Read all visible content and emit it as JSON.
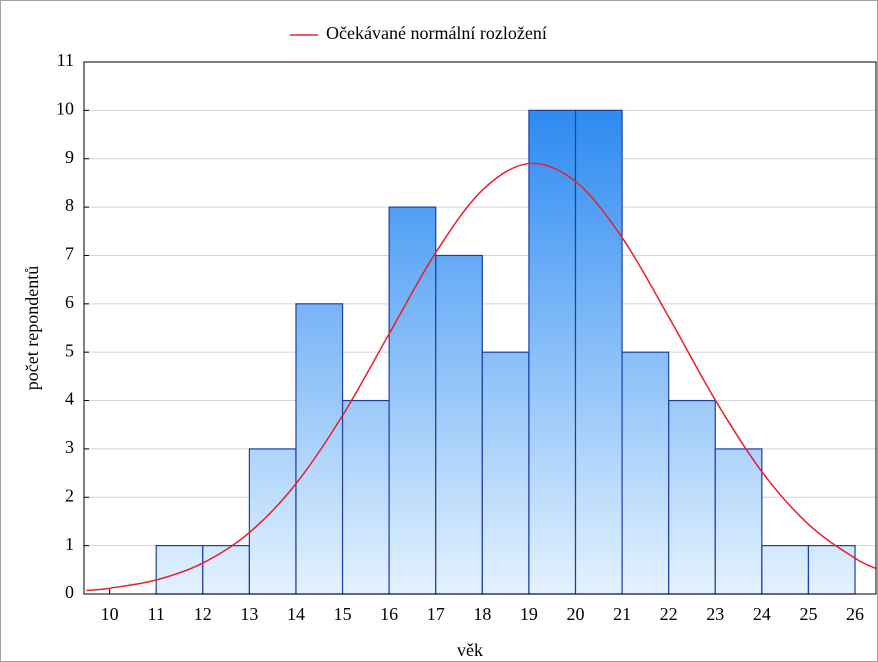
{
  "chart_data": {
    "type": "histogram",
    "xlabel": "věk",
    "ylabel": "počet repondentů",
    "bins": [
      11,
      12,
      13,
      14,
      15,
      16,
      17,
      18,
      19,
      20,
      21,
      22,
      23,
      24,
      25,
      26
    ],
    "counts": [
      1,
      1,
      3,
      6,
      4,
      8,
      7,
      5,
      10,
      10,
      5,
      4,
      3,
      1,
      1
    ],
    "bar_colors": [
      "#1a80f0",
      "#e4f2ff"
    ],
    "edge_color": "#1e3fa6",
    "curve": {
      "name": "Očekávané normální rozložení",
      "color": "#e8202a",
      "x": [
        9.5,
        10,
        11,
        12,
        13,
        14,
        15,
        16,
        17,
        18,
        19,
        20,
        21,
        22,
        23,
        24,
        25,
        26,
        26.5
      ],
      "values": [
        0.07,
        0.12,
        0.29,
        0.64,
        1.27,
        2.28,
        3.69,
        5.38,
        7.06,
        8.35,
        8.9,
        8.53,
        7.37,
        5.73,
        4.01,
        2.53,
        1.44,
        0.74,
        0.51
      ]
    },
    "xlim": [
      9.45,
      26.45
    ],
    "xticks": [
      10,
      11,
      12,
      13,
      14,
      15,
      16,
      17,
      18,
      19,
      20,
      21,
      22,
      23,
      24,
      25,
      26
    ],
    "ylim": [
      0,
      11
    ],
    "yticks": [
      0,
      1,
      2,
      3,
      4,
      5,
      6,
      7,
      8,
      9,
      10,
      11
    ],
    "grid": true,
    "legend": "top"
  }
}
